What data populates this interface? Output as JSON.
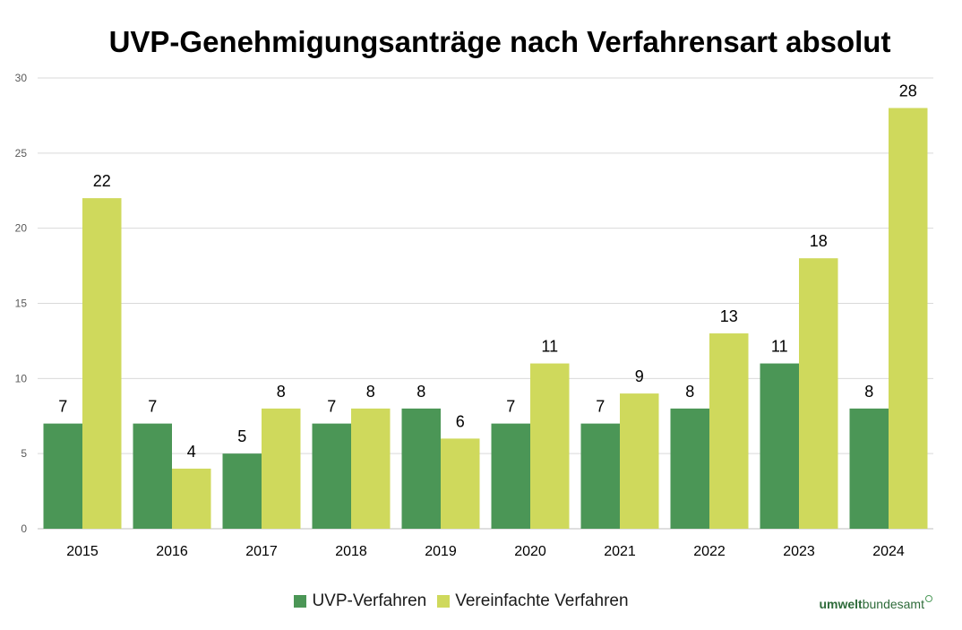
{
  "colors": {
    "series1": "#4b9656",
    "series2": "#cfd95c",
    "grid": "#d9d9d9",
    "axis": "#bfbfbf"
  },
  "chart_data": {
    "type": "bar",
    "title": "UVP-Genehmigungsanträge nach Verfahrensart absolut",
    "xlabel": "",
    "ylabel": "",
    "ylim": [
      0,
      30
    ],
    "yticks": [
      0,
      5,
      10,
      15,
      20,
      25,
      30
    ],
    "grid": true,
    "legend_position": "bottom",
    "categories": [
      "2015",
      "2016",
      "2017",
      "2018",
      "2019",
      "2020",
      "2021",
      "2022",
      "2023",
      "2024"
    ],
    "series": [
      {
        "name": "UVP-Verfahren",
        "values": [
          7,
          7,
          5,
          7,
          8,
          7,
          7,
          8,
          11,
          8
        ]
      },
      {
        "name": "Vereinfachte Verfahren",
        "values": [
          22,
          4,
          8,
          8,
          6,
          11,
          9,
          13,
          18,
          28
        ]
      }
    ]
  },
  "logo": {
    "part1": "umwelt",
    "part2": "bundesamt"
  }
}
